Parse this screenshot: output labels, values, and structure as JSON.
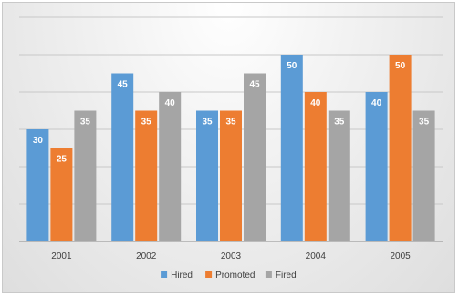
{
  "chart_data": {
    "type": "bar",
    "title": "",
    "xlabel": "",
    "ylabel": "",
    "categories": [
      "2001",
      "2002",
      "2003",
      "2004",
      "2005"
    ],
    "series": [
      {
        "name": "Hired",
        "color": "#5b9bd5",
        "values": [
          30,
          45,
          35,
          50,
          40
        ]
      },
      {
        "name": "Promoted",
        "color": "#ed7d31",
        "values": [
          25,
          35,
          35,
          40,
          50
        ]
      },
      {
        "name": "Fired",
        "color": "#a5a5a5",
        "values": [
          35,
          40,
          45,
          35,
          35
        ]
      }
    ],
    "ylim": [
      0,
      60
    ],
    "y_gridline_step": 10,
    "y_axis_labels_shown": false,
    "grid": true,
    "legend_position": "bottom"
  }
}
